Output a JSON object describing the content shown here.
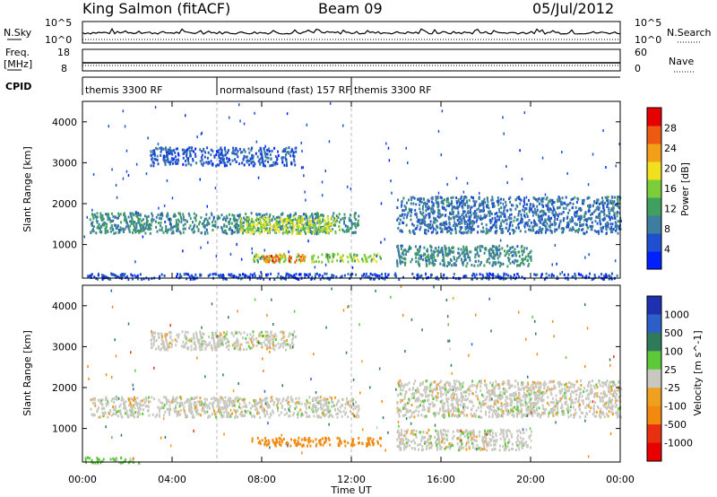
{
  "header": {
    "station": "King Salmon (fitACF)",
    "beam": "Beam 09",
    "date": "05/Jul/2012"
  },
  "nsky_panel": {
    "left_label": "N.Sky",
    "right_label": "N.Search",
    "left_ticks": [
      "10^5",
      "10^0"
    ],
    "right_ticks": [
      "10^5",
      "10^0"
    ]
  },
  "freq_panel": {
    "left_label_1": "Freq.",
    "left_label_2": "[MHz]",
    "right_label": "Nave",
    "left_ticks": [
      "18",
      "8"
    ],
    "right_ticks": [
      "60",
      "0"
    ]
  },
  "cpid": {
    "label": "CPID",
    "segments": [
      {
        "label": "themis 3300 RF",
        "start_hour": 0
      },
      {
        "label": "normalsound (fast) 157 RF",
        "start_hour": 6
      },
      {
        "label": "themis 3300 RF",
        "start_hour": 12
      }
    ]
  },
  "chart_data": [
    {
      "type": "heatmap",
      "title": "",
      "xlabel": "",
      "ylabel": "Slant Range [km]",
      "xlim_hours": [
        0,
        24
      ],
      "ylim_km": [
        180,
        4500
      ],
      "yticks": [
        1000,
        2000,
        3000,
        4000
      ],
      "colorbar": {
        "label": "Power [dB]",
        "min": 0,
        "max": 32,
        "ticks": [
          4,
          8,
          12,
          16,
          20,
          24,
          28
        ],
        "colors": [
          "#0020ff",
          "#1e4fd0",
          "#3d7ea0",
          "#3fa060",
          "#7ccd3a",
          "#f0e020",
          "#f2a018",
          "#ef5a12",
          "#e60000"
        ]
      },
      "echo_regions": [
        {
          "name": "upper arc",
          "hours": [
            3.0,
            9.5
          ],
          "range_km": [
            2950,
            3400
          ],
          "power_db": 6
        },
        {
          "name": "main band",
          "hours": [
            0.3,
            12.3
          ],
          "range_km": [
            1300,
            1800
          ],
          "power_db": 10
        },
        {
          "name": "main band core",
          "hours": [
            7.0,
            11.5
          ],
          "range_km": [
            1300,
            1700
          ],
          "power_db": 18
        },
        {
          "name": "near band",
          "hours": [
            7.5,
            13.3
          ],
          "range_km": [
            600,
            800
          ],
          "power_db": 16
        },
        {
          "name": "near band core",
          "hours": [
            8.0,
            10.0
          ],
          "range_km": [
            600,
            780
          ],
          "power_db": 26
        },
        {
          "name": "evening band",
          "hours": [
            14.0,
            24.0
          ],
          "range_km": [
            1300,
            2200
          ],
          "power_db": 8
        },
        {
          "name": "evening near band",
          "hours": [
            14.0,
            20.0
          ],
          "range_km": [
            500,
            1000
          ],
          "power_db": 10
        },
        {
          "name": "ground scatter",
          "hours": [
            0.0,
            24.0
          ],
          "range_km": [
            180,
            320
          ],
          "power_db": 5
        }
      ]
    },
    {
      "type": "heatmap",
      "title": "",
      "xlabel": "Time UT",
      "ylabel": "Slant Range [km]",
      "xlim_hours": [
        0,
        24
      ],
      "xticks": [
        "00:00",
        "04:00",
        "08:00",
        "12:00",
        "16:00",
        "20:00",
        "00:00"
      ],
      "ylim_km": [
        180,
        4500
      ],
      "yticks": [
        1000,
        2000,
        3000,
        4000
      ],
      "colorbar": {
        "label": "Velocity [m s^-1]",
        "tick_labels": [
          "1000",
          "500",
          "100",
          "25",
          "-25",
          "-100",
          "-500",
          "-1000"
        ],
        "colors": [
          "#1e2fb0",
          "#2d5fc8",
          "#2f7a5a",
          "#5cc83a",
          "#c8c8c0",
          "#f0a020",
          "#f28a10",
          "#e83010",
          "#e80000"
        ]
      },
      "echo_regions": [
        {
          "name": "upper arc",
          "hours": [
            3.0,
            9.5
          ],
          "range_km": [
            2950,
            3400
          ],
          "velocity_ms": 0
        },
        {
          "name": "main band",
          "hours": [
            0.3,
            12.3
          ],
          "range_km": [
            1300,
            1800
          ],
          "velocity_ms": 0
        },
        {
          "name": "near band",
          "hours": [
            7.5,
            13.3
          ],
          "range_km": [
            600,
            800
          ],
          "velocity_ms": -150
        },
        {
          "name": "evening band",
          "hours": [
            14.0,
            24.0
          ],
          "range_km": [
            1300,
            2200
          ],
          "velocity_ms": 0
        },
        {
          "name": "evening near band",
          "hours": [
            14.0,
            20.0
          ],
          "range_km": [
            500,
            1000
          ],
          "velocity_ms": 0
        },
        {
          "name": "ground scatter",
          "hours": [
            0.0,
            2.5
          ],
          "range_km": [
            180,
            320
          ],
          "velocity_ms": 50
        }
      ]
    }
  ]
}
